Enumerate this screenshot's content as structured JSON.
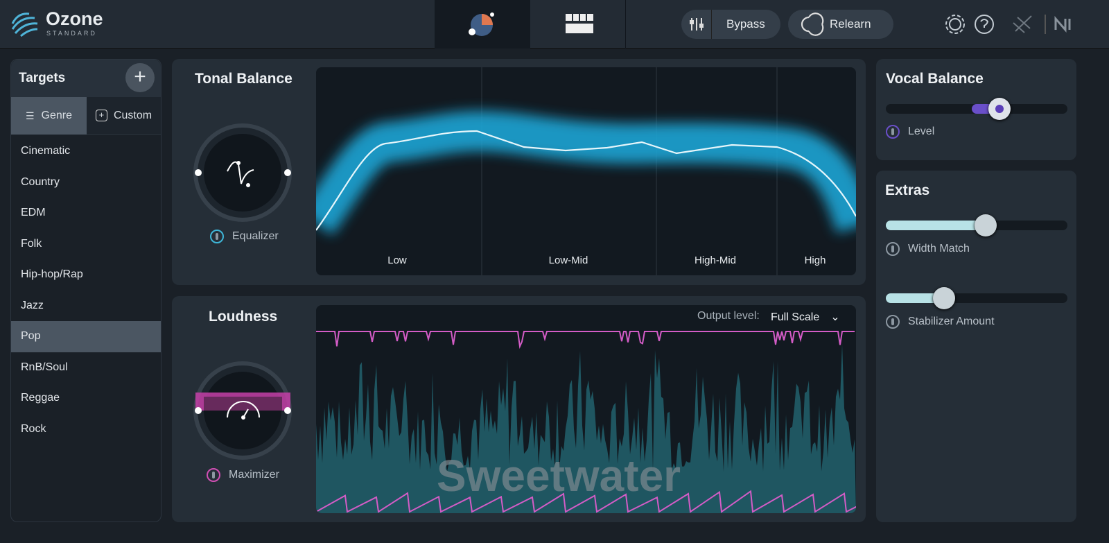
{
  "header": {
    "product": "Ozone",
    "edition": "STANDARD",
    "bypass": "Bypass",
    "relearn": "Relearn"
  },
  "targets": {
    "title": "Targets",
    "tabs": [
      "Genre",
      "Custom"
    ],
    "genres": [
      "Cinematic",
      "Country",
      "EDM",
      "Folk",
      "Hip-hop/Rap",
      "Jazz",
      "Pop",
      "RnB/Soul",
      "Reggae",
      "Rock"
    ]
  },
  "tonal_balance": {
    "title": "Tonal Balance",
    "module": "Equalizer",
    "bands": [
      "Low",
      "Low-Mid",
      "High-Mid",
      "High"
    ]
  },
  "loudness": {
    "title": "Loudness",
    "module": "Maximizer",
    "output_label": "Output level:",
    "output_value": "Full Scale",
    "watermark": "Sweetwater"
  },
  "vocal_balance": {
    "title": "Vocal Balance",
    "control": "Level"
  },
  "extras": {
    "title": "Extras",
    "controls": [
      "Width Match",
      "Stabilizer Amount"
    ]
  }
}
